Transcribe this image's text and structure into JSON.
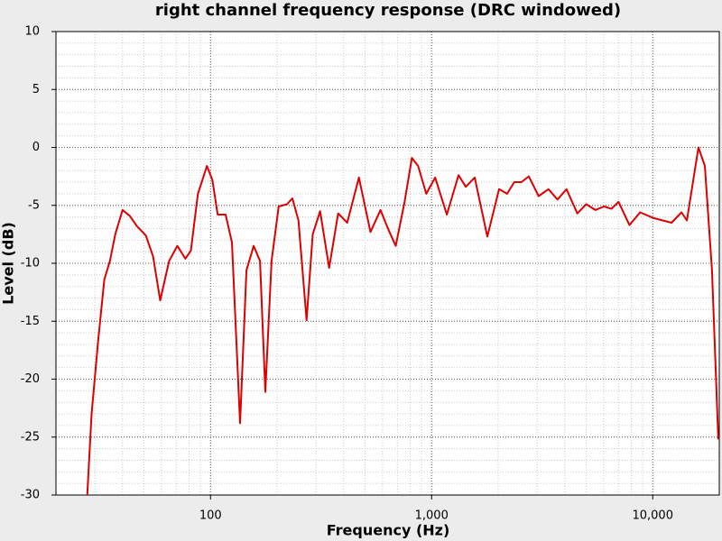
{
  "chart_data": {
    "type": "line",
    "title": "right channel frequency response (DRC windowed)",
    "x_label": "Frequency (Hz)",
    "y_label": "Level (dB)",
    "log_x": true,
    "grid": true,
    "xlim": [
      20,
      20000
    ],
    "ylim": [
      -30,
      10
    ],
    "xticks": [
      100,
      {
        "value": 1000,
        "label": "1,000"
      },
      {
        "value": 10000,
        "label": "10,000"
      }
    ],
    "yticks": [
      -30,
      -25,
      -20,
      -15,
      -10,
      -5,
      0,
      5,
      10
    ],
    "series": [
      {
        "name": "right channel",
        "color": "#dd0000",
        "x": [
          27.7,
          29.0,
          31.0,
          33.1,
          35.1,
          37.1,
          40.0,
          43.1,
          46.5,
          51,
          55,
          59.2,
          65,
          70.8,
          77,
          81.5,
          87.7,
          96.4,
          101.9,
          107.8,
          117,
          125,
          136,
          145.5,
          156.8,
          167.4,
          177,
          188.9,
          203.5,
          221.7,
          234.6,
          250,
          272,
          290,
          313,
          344,
          378,
          415,
          469,
          529,
          587,
          638,
          688,
          755,
          814,
          869,
          946,
          1038,
          1172,
          1324,
          1427,
          1566,
          1787,
          2018,
          2194,
          2364,
          2550,
          2750,
          3048,
          3377,
          3708,
          4075,
          4560,
          5003,
          5497,
          6031,
          6500,
          7010,
          7840,
          8770,
          10100,
          12170,
          13490,
          14270,
          16100,
          17200,
          18540,
          19800
        ],
        "values": [
          -30,
          -23,
          -16.8,
          -11.4,
          -9.8,
          -7.5,
          -5.4,
          -5.9,
          -6.8,
          -7.6,
          -9.4,
          -13.2,
          -9.8,
          -8.5,
          -9.6,
          -8.9,
          -4.0,
          -1.6,
          -2.8,
          -5.8,
          -5.8,
          -8.2,
          -23.8,
          -10.6,
          -8.5,
          -9.8,
          -21.1,
          -9.8,
          -5.1,
          -4.9,
          -4.4,
          -6.3,
          -14.9,
          -7.5,
          -5.5,
          -10.4,
          -5.7,
          -6.5,
          -2.6,
          -7.3,
          -5.4,
          -7.1,
          -8.5,
          -4.7,
          -0.9,
          -1.6,
          -4.0,
          -2.6,
          -5.8,
          -2.4,
          -3.4,
          -2.6,
          -7.7,
          -3.6,
          -4.0,
          -3.0,
          -3.0,
          -2.5,
          -4.2,
          -3.6,
          -4.5,
          -3.6,
          -5.7,
          -4.9,
          -5.4,
          -5.1,
          -5.3,
          -4.7,
          -6.7,
          -5.6,
          -6.1,
          -6.5,
          -5.6,
          -6.3,
          0,
          -1.6,
          -10.6,
          -25.2
        ]
      }
    ]
  }
}
